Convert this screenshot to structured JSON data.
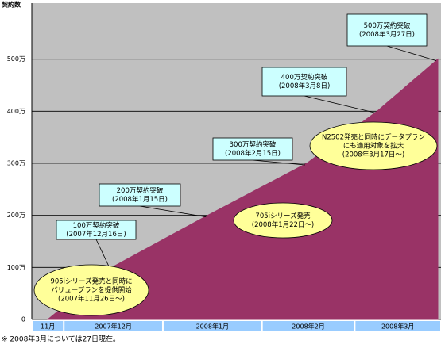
{
  "chart_data": {
    "type": "area",
    "y_label": "契約数",
    "x": [
      "2007-11-26",
      "2007-12-16",
      "2008-01-15",
      "2008-02-15",
      "2008-03-08",
      "2008-03-27"
    ],
    "values": [
      0,
      100,
      200,
      300,
      400,
      500
    ],
    "color": "#993366",
    "background": "#c0c0c0",
    "xlim": [
      "2007-11-21",
      "2008-03-28"
    ],
    "ylim": [
      0,
      600
    ],
    "yticks": [
      0,
      {
        "value": 100,
        "label": "100万"
      },
      {
        "value": 200,
        "label": "200万"
      },
      {
        "value": 300,
        "label": "300万"
      },
      {
        "value": 400,
        "label": "400万"
      },
      {
        "value": 500,
        "label": "500万"
      }
    ],
    "grid": true,
    "x_bands": [
      {
        "label": "11月",
        "start": "2007-11-21",
        "end": "2007-12-01"
      },
      {
        "label": "2007年12月",
        "start": "2007-12-01",
        "end": "2008-01-01"
      },
      {
        "label": "2008年1月",
        "start": "2008-01-01",
        "end": "2008-02-01"
      },
      {
        "label": "2008年2月",
        "start": "2008-02-01",
        "end": "2008-03-01"
      },
      {
        "label": "2008年3月",
        "start": "2008-03-01",
        "end": "2008-03-28"
      }
    ],
    "annotations": [
      {
        "shape": "box",
        "lines": [
          "100万契約突破",
          "(2007年12月16日)"
        ]
      },
      {
        "shape": "box",
        "lines": [
          "200万契約突破",
          "(2008年1月15日)"
        ]
      },
      {
        "shape": "box",
        "lines": [
          "300万契約突破",
          "(2008年2月15日)"
        ]
      },
      {
        "shape": "box",
        "lines": [
          "400万契約突破",
          "(2008年3月8日)"
        ]
      },
      {
        "shape": "box",
        "lines": [
          "500万契約突破",
          "(2008年3月27日)"
        ]
      },
      {
        "shape": "ellipse",
        "lines": [
          "905iシリーズ発売と同時に",
          "バリュープランを提供開始",
          "(2007年11月26日～)"
        ]
      },
      {
        "shape": "ellipse",
        "lines": [
          "705iシリーズ発売",
          "(2008年1月22日～)"
        ]
      },
      {
        "shape": "ellipse",
        "lines": [
          "N2502発売と同時にデータプラン",
          "にも適用対象を拡大",
          "(2008年3月17日～)"
        ]
      }
    ],
    "footnote": "※ 2008年3月については27日現在。"
  }
}
